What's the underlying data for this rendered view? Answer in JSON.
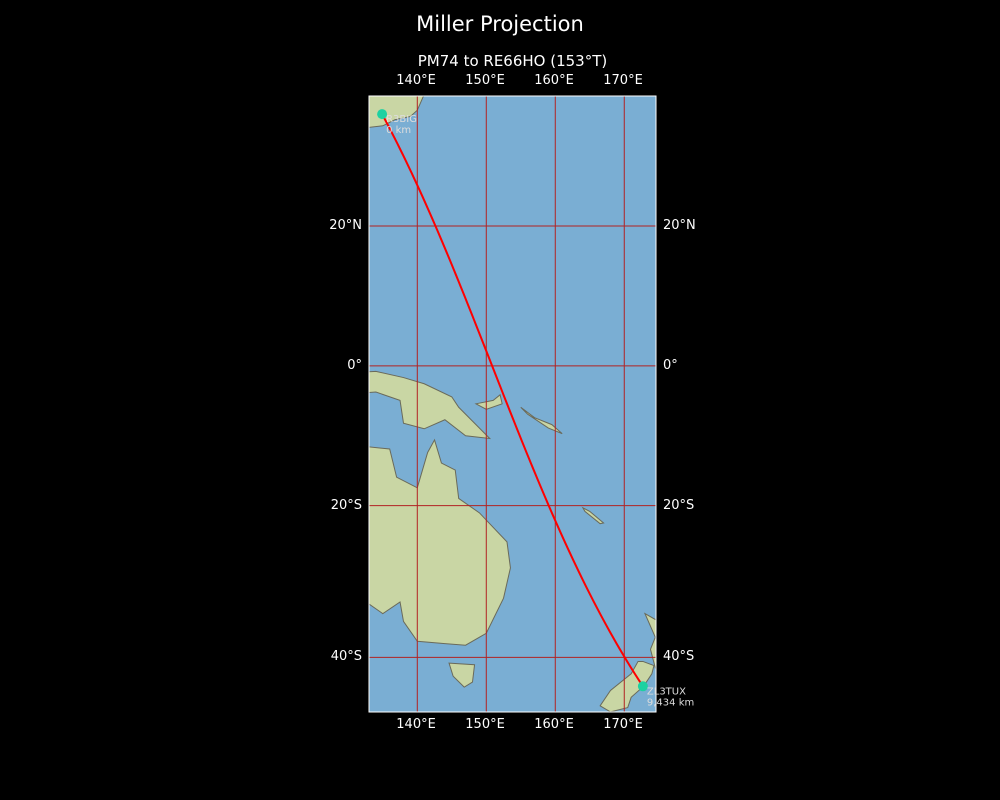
{
  "title": "Miller Projection",
  "subtitle": "PM74 to RE66HO (153°T)",
  "map": {
    "projection": "Miller",
    "extent": {
      "lon_min": 133.0,
      "lon_max": 174.6,
      "lat_min": -46.4,
      "lat_max": 37.3
    },
    "lon_ticks": [
      {
        "value": 140,
        "label": "140°E"
      },
      {
        "value": 150,
        "label": "150°E"
      },
      {
        "value": 160,
        "label": "160°E"
      },
      {
        "value": 170,
        "label": "170°E"
      }
    ],
    "lat_ticks": [
      {
        "value": 20,
        "label": "20°N"
      },
      {
        "value": 0,
        "label": "0°"
      },
      {
        "value": -20,
        "label": "20°S"
      },
      {
        "value": -40,
        "label": "40°S"
      }
    ],
    "colors": {
      "ocean": "#7aaed3",
      "land": "#c9d6a4",
      "coast": "#6a6a5a",
      "grid": "#b22222",
      "path": "#ff0000",
      "station": "#1dd1a1"
    },
    "stations": [
      {
        "call": "R3BIG",
        "distance": "0 km",
        "lon": 134.9,
        "lat": 35.0
      },
      {
        "call": "ZL3TUX",
        "distance": "9,434 km",
        "lon": 172.7,
        "lat": -43.5
      }
    ]
  }
}
